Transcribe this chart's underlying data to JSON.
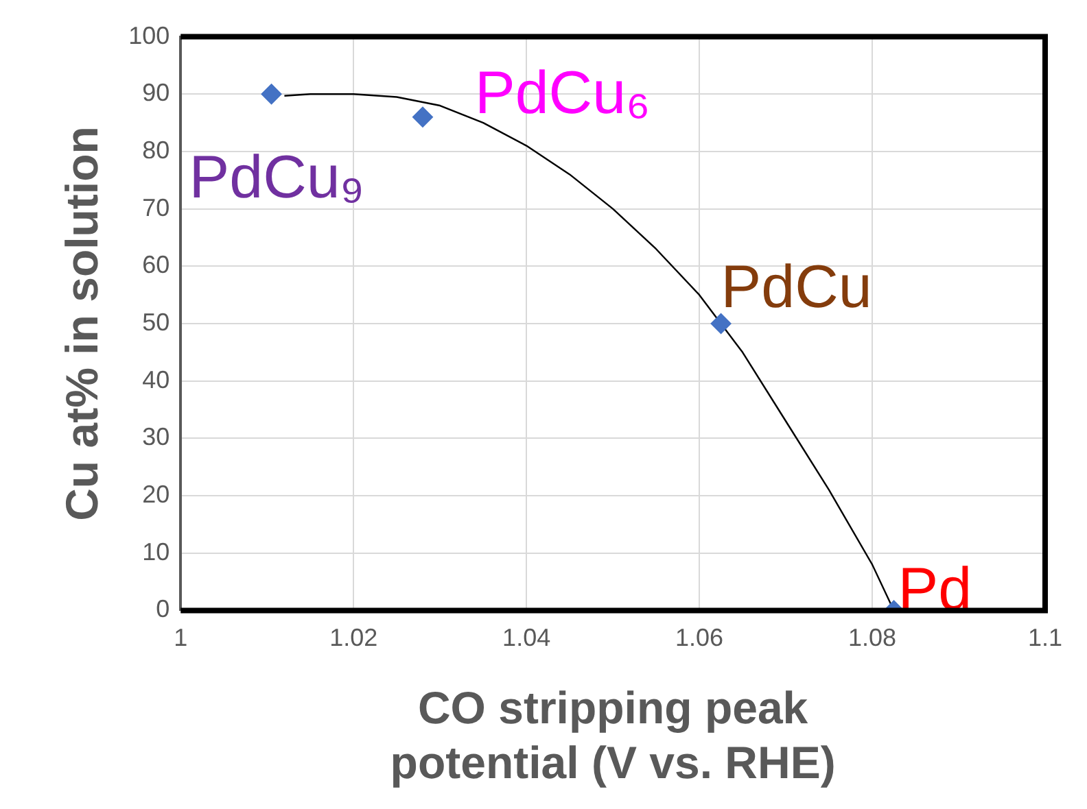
{
  "chart_data": {
    "type": "scatter",
    "xlabel": "CO stripping peak\npotential (V vs. RHE)",
    "ylabel": "Cu at% in solution",
    "series": [
      {
        "color": "#4472c4",
        "x": [
          1.0105,
          1.028,
          1.0625,
          1.0825
        ],
        "values": [
          90,
          86,
          50,
          0
        ],
        "marker": "diamond"
      },
      {
        "type": "line",
        "color": "#000000",
        "x": [
          1.012,
          1.015,
          1.02,
          1.025,
          1.03,
          1.035,
          1.04,
          1.045,
          1.05,
          1.055,
          1.06,
          1.065,
          1.07,
          1.075,
          1.08,
          1.0825
        ],
        "values": [
          89.7,
          90,
          90,
          89.5,
          88,
          85,
          81,
          76,
          70,
          63,
          55,
          45,
          33,
          21,
          8,
          0
        ],
        "marker": "none"
      }
    ],
    "annotations": [
      {
        "text": "PdCu₉",
        "x": 1.0105,
        "y": 90
      },
      {
        "text": "PdCu₆",
        "x": 1.028,
        "y": 86
      },
      {
        "text": "PdCu",
        "x": 1.0625,
        "y": 50
      },
      {
        "text": "Pd",
        "x": 1.0825,
        "y": 0
      }
    ],
    "xlim": [
      1,
      1.1
    ],
    "xticks": [
      1,
      1.02,
      1.04,
      1.06,
      1.08,
      1.1
    ],
    "ylim": [
      0,
      100
    ],
    "yticks": [
      0,
      10,
      20,
      30,
      40,
      50,
      60,
      70,
      80,
      90,
      100
    ],
    "grid": true,
    "legend": false
  }
}
